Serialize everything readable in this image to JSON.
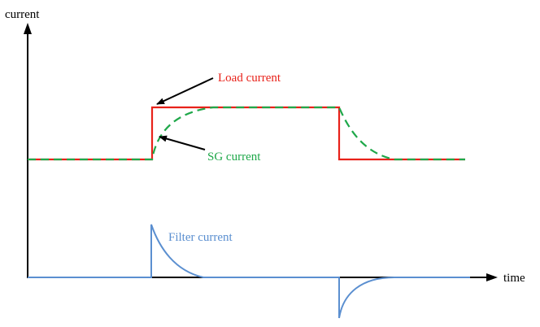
{
  "labels": {
    "y_axis": "current",
    "x_axis": "time",
    "load_current": "Load current",
    "sg_current": "SG current",
    "filter_current": "Filter current"
  },
  "colors": {
    "axis": "#000000",
    "load_current": "#e8221a",
    "sg_current": "#1fa84a",
    "filter_current": "#5b8fd0"
  }
}
